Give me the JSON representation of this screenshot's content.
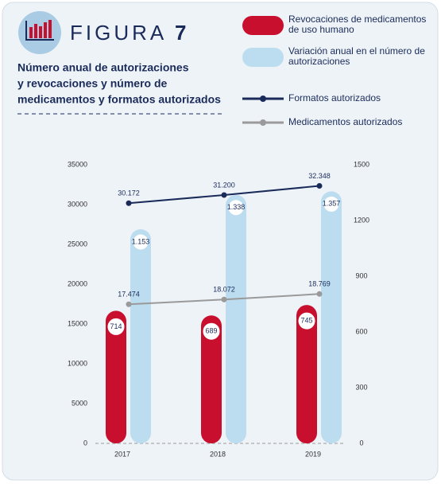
{
  "header": {
    "figure": "FIGURA",
    "number": "7"
  },
  "chart_data": {
    "type": "bar",
    "subtitle": [
      "Número anual de autorizaciones",
      "y revocaciones y número de",
      "medicamentos y formatos autorizados"
    ],
    "categories": [
      "2017",
      "2018",
      "2019"
    ],
    "ylim": [
      0,
      35000
    ],
    "yticks": [
      0,
      5000,
      10000,
      15000,
      20000,
      25000,
      30000,
      35000
    ],
    "y2lim": [
      0,
      1500
    ],
    "y2ticks": [
      0,
      300,
      600,
      900,
      1200,
      1500
    ],
    "series": [
      {
        "name": "Revocaciones de medicamentos de uso humano",
        "type": "bar",
        "axis": "y2",
        "color": "#c8102e",
        "values": [
          714,
          689,
          745
        ]
      },
      {
        "name": "Variación anual en el número de autorizaciones",
        "type": "bar",
        "axis": "y2",
        "color": "#bcdcef",
        "values": [
          1153,
          1338,
          1357
        ],
        "value_labels": [
          "1.153",
          "1.338",
          "1.357"
        ]
      },
      {
        "name": "Formatos autorizados",
        "type": "line",
        "color": "#1a2b5a",
        "values": [
          30172,
          31200,
          32348
        ],
        "value_labels": [
          "30.172",
          "31.200",
          "32.348"
        ]
      },
      {
        "name": "Medicamentos autorizados",
        "type": "line",
        "color": "#9a9a9a",
        "values": [
          17474,
          18072,
          18769
        ],
        "value_labels": [
          "17.474",
          "18.072",
          "18.769"
        ]
      }
    ]
  }
}
